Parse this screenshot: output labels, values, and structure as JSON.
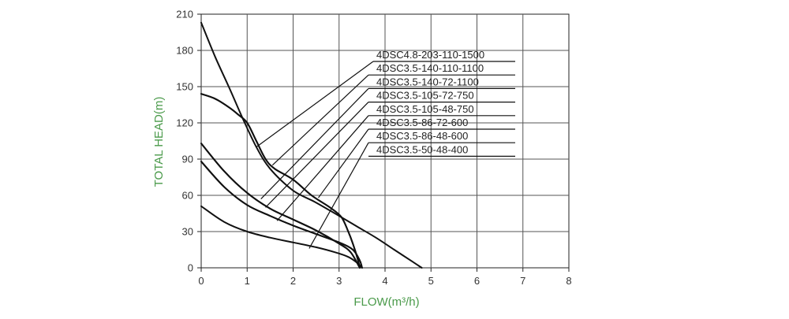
{
  "chart_data": {
    "type": "line",
    "title": "",
    "xlabel": "FLOW(m³/h)",
    "ylabel": "TOTAL HEAD(m)",
    "xlim": [
      0,
      8
    ],
    "ylim": [
      0,
      210
    ],
    "x_ticks": [
      "0",
      "1",
      "2",
      "3",
      "4",
      "5",
      "6",
      "7",
      "8"
    ],
    "y_ticks": [
      "0",
      "30",
      "60",
      "90",
      "120",
      "150",
      "180",
      "210"
    ],
    "grid": true,
    "legend_position": "top-right",
    "label_color": "#4a9a4a",
    "line_color": "#111111",
    "series": [
      {
        "name": "4DSC4.8-203-110-1500",
        "points": [
          [
            0,
            203
          ],
          [
            0.3,
            175
          ],
          [
            0.6,
            150
          ],
          [
            0.9,
            124
          ],
          [
            1.2,
            100
          ],
          [
            1.5,
            82
          ],
          [
            2.0,
            64
          ],
          [
            2.5,
            54
          ],
          [
            3.0,
            43
          ],
          [
            3.4,
            34
          ],
          [
            3.8,
            25
          ],
          [
            4.2,
            15
          ],
          [
            4.6,
            5
          ],
          [
            4.8,
            0
          ]
        ]
      },
      {
        "name": "4DSC3.5-140-110-1100",
        "points": [
          [
            0,
            144
          ],
          [
            0.3,
            140
          ],
          [
            0.6,
            133
          ],
          [
            0.8,
            127
          ],
          [
            1.0,
            120
          ],
          [
            1.2,
            105
          ],
          [
            1.4,
            90
          ],
          [
            1.6,
            82
          ],
          [
            2.0,
            73
          ],
          [
            2.4,
            60
          ],
          [
            2.8,
            50
          ],
          [
            3.05,
            42
          ],
          [
            3.2,
            30
          ],
          [
            3.3,
            20
          ],
          [
            3.4,
            8
          ],
          [
            3.45,
            0
          ]
        ]
      },
      {
        "name": "4DSC3.5-140-72-1100",
        "points": [
          [
            0,
            144
          ],
          [
            0.3,
            140
          ],
          [
            0.6,
            133
          ],
          [
            0.8,
            127
          ],
          [
            1.0,
            120
          ],
          [
            1.2,
            105
          ],
          [
            1.4,
            90
          ],
          [
            1.6,
            82
          ],
          [
            2.0,
            73
          ],
          [
            2.4,
            60
          ],
          [
            2.8,
            50
          ],
          [
            3.05,
            42
          ],
          [
            3.2,
            30
          ],
          [
            3.3,
            20
          ],
          [
            3.4,
            8
          ],
          [
            3.45,
            0
          ]
        ]
      },
      {
        "name": "4DSC3.5-105-72-750",
        "points": [
          [
            0,
            103
          ],
          [
            0.5,
            80
          ],
          [
            1.0,
            62
          ],
          [
            1.5,
            49
          ],
          [
            2.0,
            40
          ],
          [
            2.5,
            31
          ],
          [
            3.0,
            20
          ],
          [
            3.25,
            13
          ],
          [
            3.45,
            0
          ]
        ]
      },
      {
        "name": "4DSC3.5-105-48-750",
        "points": [
          [
            0,
            103
          ],
          [
            0.5,
            80
          ],
          [
            1.0,
            62
          ],
          [
            1.5,
            49
          ],
          [
            2.0,
            40
          ],
          [
            2.5,
            31
          ],
          [
            3.0,
            20
          ],
          [
            3.25,
            13
          ],
          [
            3.45,
            0
          ]
        ]
      },
      {
        "name": "4DSC3.5-86-72-600",
        "points": [
          [
            0,
            88
          ],
          [
            0.5,
            67
          ],
          [
            1.0,
            52
          ],
          [
            1.5,
            43
          ],
          [
            2.0,
            35
          ],
          [
            2.5,
            28
          ],
          [
            3.0,
            21
          ],
          [
            3.3,
            15
          ],
          [
            3.45,
            6
          ],
          [
            3.5,
            0
          ]
        ]
      },
      {
        "name": "4DSC3.5-86-48-600",
        "points": [
          [
            0,
            88
          ],
          [
            0.5,
            67
          ],
          [
            1.0,
            52
          ],
          [
            1.5,
            43
          ],
          [
            2.0,
            35
          ],
          [
            2.5,
            28
          ],
          [
            3.0,
            21
          ],
          [
            3.3,
            15
          ],
          [
            3.45,
            6
          ],
          [
            3.5,
            0
          ]
        ]
      },
      {
        "name": "4DSC3.5-50-48-400",
        "points": [
          [
            0,
            51
          ],
          [
            0.5,
            38
          ],
          [
            1.0,
            30
          ],
          [
            1.5,
            25
          ],
          [
            2.0,
            21
          ],
          [
            2.5,
            17
          ],
          [
            2.9,
            13
          ],
          [
            3.2,
            9
          ],
          [
            3.4,
            4
          ],
          [
            3.5,
            0
          ]
        ]
      }
    ],
    "legend_pointers": [
      {
        "label_index": 0,
        "target": [
          1.2,
          100
        ]
      },
      {
        "label_index": 1,
        "target": [
          1.55,
          85
        ]
      },
      {
        "label_index": 2,
        "target": [
          1.3,
          57
        ]
      },
      {
        "label_index": 3,
        "target": [
          1.4,
          50
        ]
      },
      {
        "label_index": 4,
        "target": [
          1.65,
          39
        ]
      },
      {
        "label_index": 5,
        "target": [
          2.55,
          58
        ]
      },
      {
        "label_index": 6,
        "target": [
          2.35,
          16
        ]
      }
    ]
  }
}
